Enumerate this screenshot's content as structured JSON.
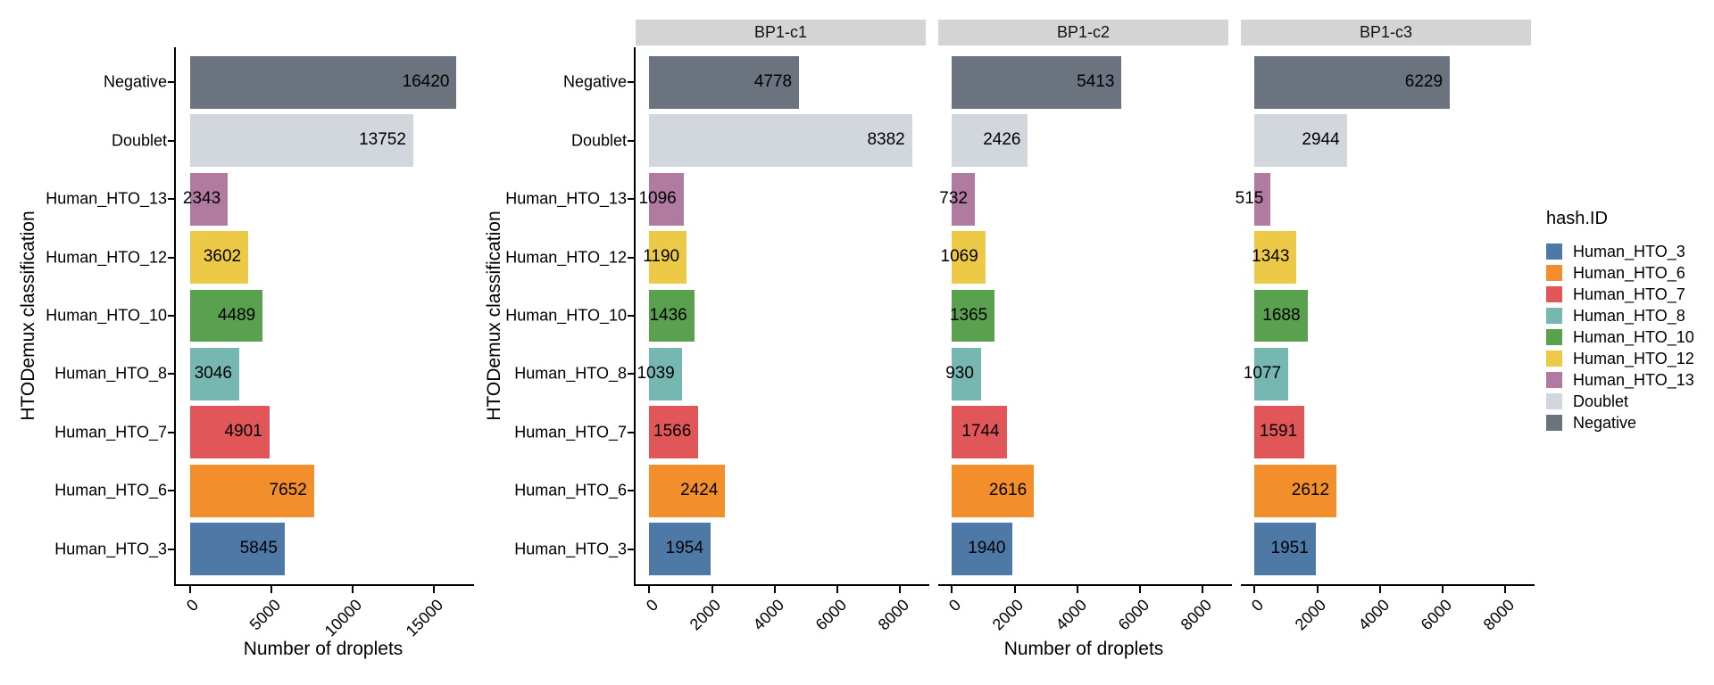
{
  "figure": {
    "background": "#ffffff",
    "legend_position": "right"
  },
  "chart_data": {
    "type": "bar",
    "orientation": "horizontal",
    "grid": false,
    "title": "",
    "xlabel": "Number of droplets",
    "ylabel": "HTODemux classification",
    "categories_top_to_bottom": [
      "Negative",
      "Doublet",
      "Human_HTO_13",
      "Human_HTO_12",
      "Human_HTO_10",
      "Human_HTO_8",
      "Human_HTO_7",
      "Human_HTO_6",
      "Human_HTO_3"
    ],
    "category_colors": {
      "Negative": "#6b737e",
      "Doublet": "#d2d7de",
      "Human_HTO_13": "#b07aa1",
      "Human_HTO_12": "#edc948",
      "Human_HTO_10": "#59a14f",
      "Human_HTO_8": "#76b7b2",
      "Human_HTO_7": "#e15759",
      "Human_HTO_6": "#f28e2b",
      "Human_HTO_3": "#4e79a7"
    },
    "panels": [
      {
        "facet_label": "",
        "xticks": [
          0,
          5000,
          10000,
          15000
        ],
        "values": [
          16420,
          13752,
          2343,
          3602,
          4489,
          3046,
          4901,
          7652,
          5845
        ]
      },
      {
        "facet_label": "BP1-c1",
        "xticks": [
          0,
          2000,
          4000,
          6000,
          8000
        ],
        "values": [
          4778,
          8382,
          1096,
          1190,
          1436,
          1039,
          1566,
          2424,
          1954
        ]
      },
      {
        "facet_label": "BP1-c2",
        "xticks": [
          0,
          2000,
          4000,
          6000,
          8000
        ],
        "values": [
          5413,
          2426,
          732,
          1069,
          1365,
          930,
          1744,
          2616,
          1940
        ]
      },
      {
        "facet_label": "BP1-c3",
        "xticks": [
          0,
          2000,
          4000,
          6000,
          8000
        ],
        "values": [
          6229,
          2944,
          515,
          1343,
          1688,
          1077,
          1591,
          2612,
          1951
        ]
      }
    ],
    "legend": {
      "title": "hash.ID",
      "entries": [
        {
          "label": "Human_HTO_3",
          "color": "#4e79a7"
        },
        {
          "label": "Human_HTO_6",
          "color": "#f28e2b"
        },
        {
          "label": "Human_HTO_7",
          "color": "#e15759"
        },
        {
          "label": "Human_HTO_8",
          "color": "#76b7b2"
        },
        {
          "label": "Human_HTO_10",
          "color": "#59a14f"
        },
        {
          "label": "Human_HTO_12",
          "color": "#edc948"
        },
        {
          "label": "Human_HTO_13",
          "color": "#b07aa1"
        },
        {
          "label": "Doublet",
          "color": "#d2d7de"
        },
        {
          "label": "Negative",
          "color": "#6b737e"
        }
      ]
    },
    "colors": {
      "strip_background": "#d4d4d4",
      "axis": "#000000",
      "text": "#000000"
    }
  }
}
